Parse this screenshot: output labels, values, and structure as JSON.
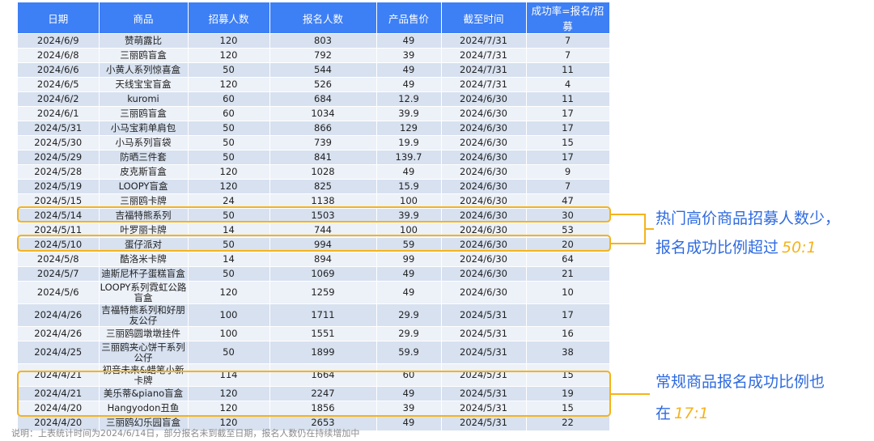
{
  "table": {
    "headers": [
      "日期",
      "商品",
      "招募人数",
      "报名人数",
      "产品售价",
      "截至时间",
      "成功率=报名/招募"
    ],
    "rows": [
      [
        "2024/6/9",
        "赞萌露比",
        "120",
        "803",
        "49",
        "2024/7/31",
        "7"
      ],
      [
        "2024/6/8",
        "三丽鸥盲盒",
        "120",
        "792",
        "39",
        "2024/7/31",
        "7"
      ],
      [
        "2024/6/6",
        "小黄人系列惊喜盒",
        "50",
        "544",
        "49",
        "2024/7/31",
        "11"
      ],
      [
        "2024/6/5",
        "天线宝宝盲盒",
        "120",
        "526",
        "49",
        "2024/7/31",
        "4"
      ],
      [
        "2024/6/2",
        "kuromi",
        "60",
        "684",
        "12.9",
        "2024/6/30",
        "11"
      ],
      [
        "2024/6/1",
        "三丽鸥盲盒",
        "60",
        "1034",
        "39.9",
        "2024/6/30",
        "17"
      ],
      [
        "2024/5/31",
        "小马宝莉单肩包",
        "50",
        "866",
        "129",
        "2024/6/30",
        "17"
      ],
      [
        "2024/5/30",
        "小马系列盲袋",
        "50",
        "739",
        "19.9",
        "2024/6/30",
        "15"
      ],
      [
        "2024/5/29",
        "防晒三件套",
        "50",
        "841",
        "139.7",
        "2024/6/30",
        "17"
      ],
      [
        "2024/5/28",
        "皮克斯盲盒",
        "120",
        "1028",
        "49",
        "2024/6/30",
        "9"
      ],
      [
        "2024/5/19",
        "LOOPY盲盒",
        "120",
        "825",
        "15.9",
        "2024/6/30",
        "7"
      ],
      [
        "2024/5/15",
        "三丽鸥卡牌",
        "24",
        "1138",
        "100",
        "2024/6/30",
        "47"
      ],
      [
        "2024/5/14",
        "吉福特熊系列",
        "50",
        "1503",
        "39.9",
        "2024/6/30",
        "30"
      ],
      [
        "2024/5/11",
        "叶罗丽卡牌",
        "14",
        "744",
        "100",
        "2024/6/30",
        "53"
      ],
      [
        "2024/5/10",
        "蛋仔派对",
        "50",
        "994",
        "59",
        "2024/6/30",
        "20"
      ],
      [
        "2024/5/8",
        "酷洛米卡牌",
        "14",
        "894",
        "99",
        "2024/6/30",
        "64"
      ],
      [
        "2024/5/7",
        "迪斯尼杯子蛋糕盲盒",
        "50",
        "1069",
        "49",
        "2024/6/30",
        "21"
      ],
      [
        "2024/5/6",
        "LOOPY系列霓虹公路盲盒",
        "120",
        "1259",
        "49",
        "2024/6/30",
        "10"
      ],
      [
        "2024/4/26",
        "吉福特熊系列和好朋友公仔",
        "100",
        "1711",
        "29.9",
        "2024/5/31",
        "17"
      ],
      [
        "2024/4/26",
        "三丽鸥圆墩墩挂件",
        "100",
        "1551",
        "29.9",
        "2024/5/31",
        "16"
      ],
      [
        "2024/4/25",
        "三丽鸥夹心饼干系列公仔",
        "50",
        "1899",
        "59.9",
        "2024/5/31",
        "38"
      ],
      [
        "2024/4/21",
        "初音未来&蜡笔小新卡牌",
        "114",
        "1664",
        "60",
        "2024/5/31",
        "15"
      ],
      [
        "2024/4/21",
        "美乐蒂&piano盲盒",
        "120",
        "2247",
        "49",
        "2024/5/31",
        "19"
      ],
      [
        "2024/4/20",
        "Hangyodon丑鱼",
        "120",
        "1856",
        "39",
        "2024/5/31",
        "15"
      ],
      [
        "2024/4/20",
        "三丽鸥幻乐园盲盒",
        "120",
        "2653",
        "49",
        "2024/5/31",
        "22"
      ]
    ]
  },
  "annotations": {
    "high_price": {
      "line1": "热门高价商品招募人数少，",
      "line2": "报名成功比例超过",
      "ratio": "50:1"
    },
    "regular": {
      "line1": "常规商品报名成功比例也",
      "line2": "在",
      "ratio": "17:1"
    }
  },
  "footnote": "说明：上表统计时间为2024/6/14日，部分报名未到截至日期，报名人数仍在持续增加中",
  "colors": {
    "header": "#3d7ff5",
    "highlight": "#f5b31a",
    "annotation": "#2e6ae0"
  }
}
